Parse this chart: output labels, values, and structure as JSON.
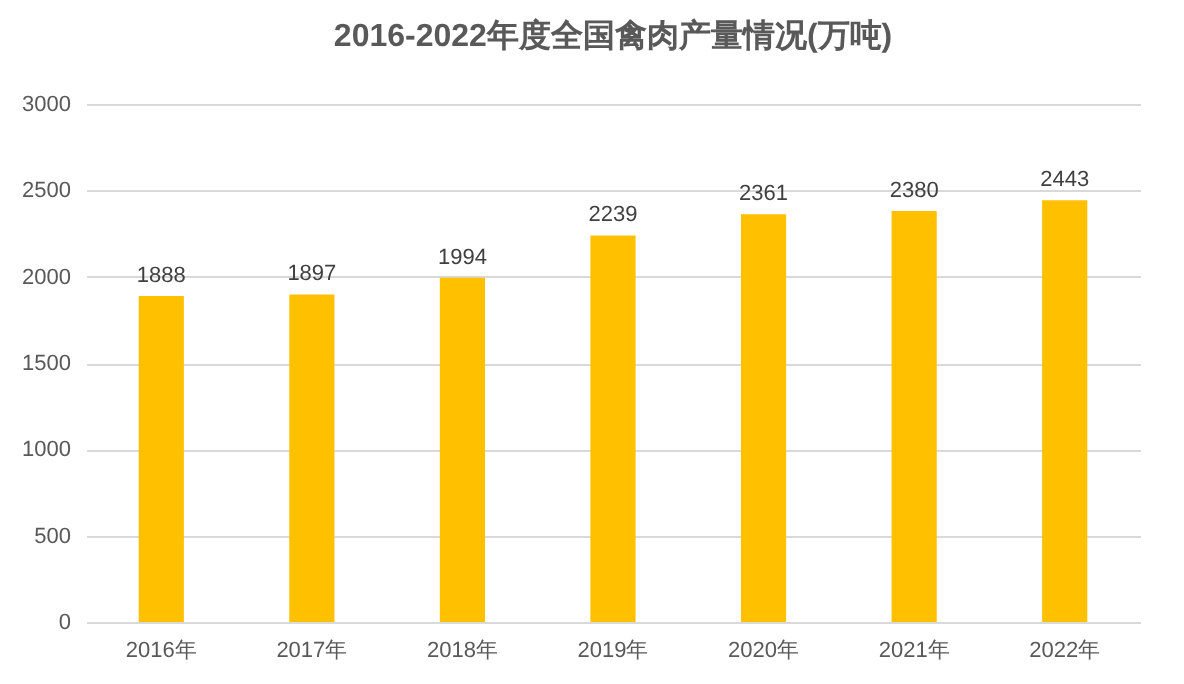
{
  "chart_data": {
    "type": "bar",
    "title": "2016-2022年度全国禽肉产量情况(万吨)",
    "categories": [
      "2016年",
      "2017年",
      "2018年",
      "2019年",
      "2020年",
      "2021年",
      "2022年"
    ],
    "values": [
      1888,
      1897,
      1994,
      2239,
      2361,
      2380,
      2443
    ],
    "color": "#ffc000",
    "ylim": [
      0,
      3000
    ],
    "yticks": [
      0,
      500,
      1000,
      1500,
      2000,
      2500,
      3000
    ],
    "grid": "y",
    "data_labels": true
  }
}
